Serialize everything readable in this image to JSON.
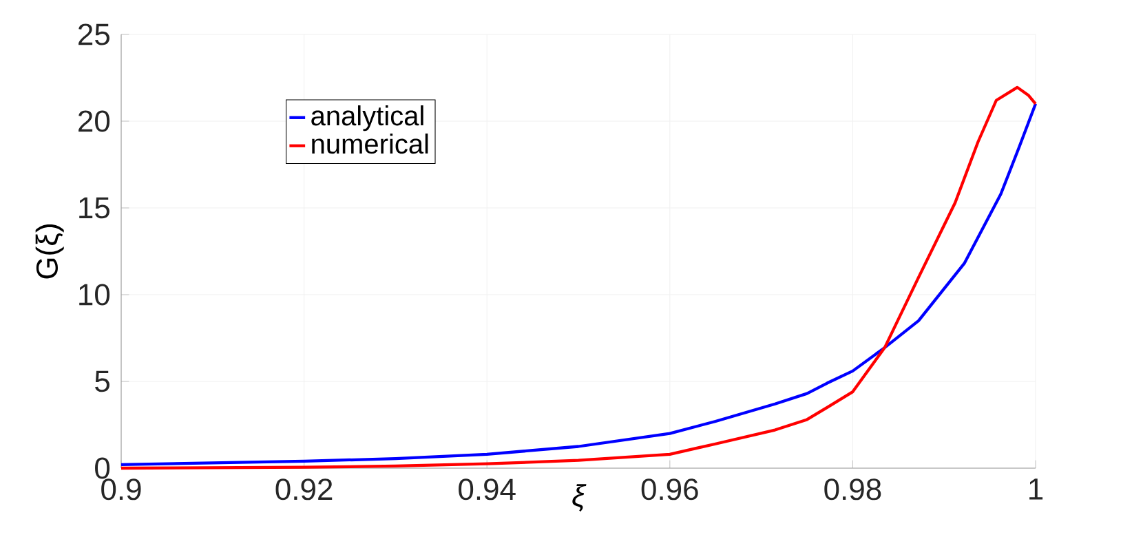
{
  "chart_data": {
    "type": "line",
    "xlabel": "ξ",
    "ylabel": "G(ξ)",
    "xlim": [
      0.9,
      1
    ],
    "ylim": [
      0,
      25
    ],
    "xticks": [
      0.9,
      0.92,
      0.94,
      0.96,
      0.98,
      1
    ],
    "yticks": [
      0,
      5,
      10,
      15,
      20,
      25
    ],
    "grid": true,
    "legend": "top left",
    "line_style": "solid",
    "marker": "none",
    "series": [
      {
        "name": "analytical",
        "color": "#0000ff",
        "x": [
          0.9,
          0.92,
          0.93,
          0.94,
          0.95,
          0.96,
          0.965,
          0.9715,
          0.975,
          0.9772,
          0.98,
          0.9835,
          0.9872,
          0.9922,
          0.9962,
          0.9982,
          1
        ],
        "values": [
          0.2,
          0.4,
          0.55,
          0.8,
          1.25,
          2.0,
          2.7,
          3.7,
          4.3,
          4.9,
          5.6,
          6.95,
          8.5,
          11.8,
          15.8,
          18.5,
          21.0
        ]
      },
      {
        "name": "numerical",
        "color": "#ff0000",
        "x": [
          0.9,
          0.92,
          0.93,
          0.94,
          0.95,
          0.96,
          0.965,
          0.9715,
          0.975,
          0.9772,
          0.98,
          0.9835,
          0.9872,
          0.9912,
          0.9937,
          0.9957,
          0.998,
          0.9992,
          1
        ],
        "values": [
          0.0,
          0.05,
          0.12,
          0.25,
          0.45,
          0.8,
          1.4,
          2.2,
          2.8,
          3.5,
          4.4,
          6.95,
          11.0,
          15.3,
          18.8,
          21.2,
          21.95,
          21.5,
          21.0
        ]
      }
    ]
  }
}
